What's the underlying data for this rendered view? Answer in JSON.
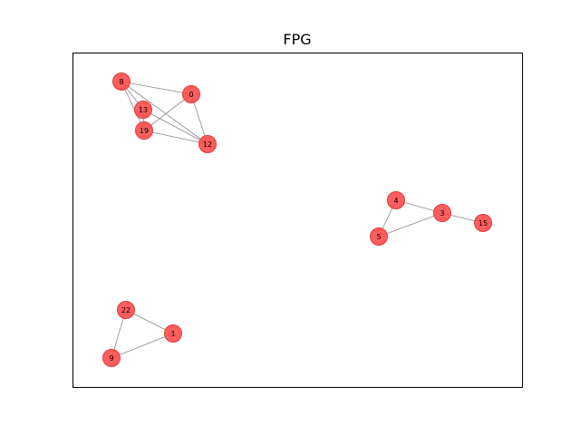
{
  "title": "FPG",
  "colors": {
    "node_fill": "#ff4d4d",
    "node_stroke": "#e03a3a",
    "edge": "#888888",
    "frame": "#000000",
    "background": "#ffffff"
  },
  "nodes": [
    {
      "id": "0",
      "label": "0"
    },
    {
      "id": "8",
      "label": "8"
    },
    {
      "id": "13",
      "label": "13"
    },
    {
      "id": "19",
      "label": "19"
    },
    {
      "id": "12",
      "label": "12"
    },
    {
      "id": "4",
      "label": "4"
    },
    {
      "id": "3",
      "label": "3"
    },
    {
      "id": "15",
      "label": "15"
    },
    {
      "id": "5",
      "label": "5"
    },
    {
      "id": "22",
      "label": "22"
    },
    {
      "id": "1",
      "label": "1"
    },
    {
      "id": "9",
      "label": "9"
    }
  ],
  "edges": [
    [
      "8",
      "0"
    ],
    [
      "8",
      "13"
    ],
    [
      "8",
      "19"
    ],
    [
      "8",
      "12"
    ],
    [
      "0",
      "19"
    ],
    [
      "0",
      "12"
    ],
    [
      "13",
      "19"
    ],
    [
      "13",
      "12"
    ],
    [
      "19",
      "12"
    ],
    [
      "4",
      "3"
    ],
    [
      "4",
      "5"
    ],
    [
      "3",
      "15"
    ],
    [
      "3",
      "5"
    ],
    [
      "22",
      "1"
    ],
    [
      "22",
      "9"
    ],
    [
      "1",
      "9"
    ]
  ]
}
